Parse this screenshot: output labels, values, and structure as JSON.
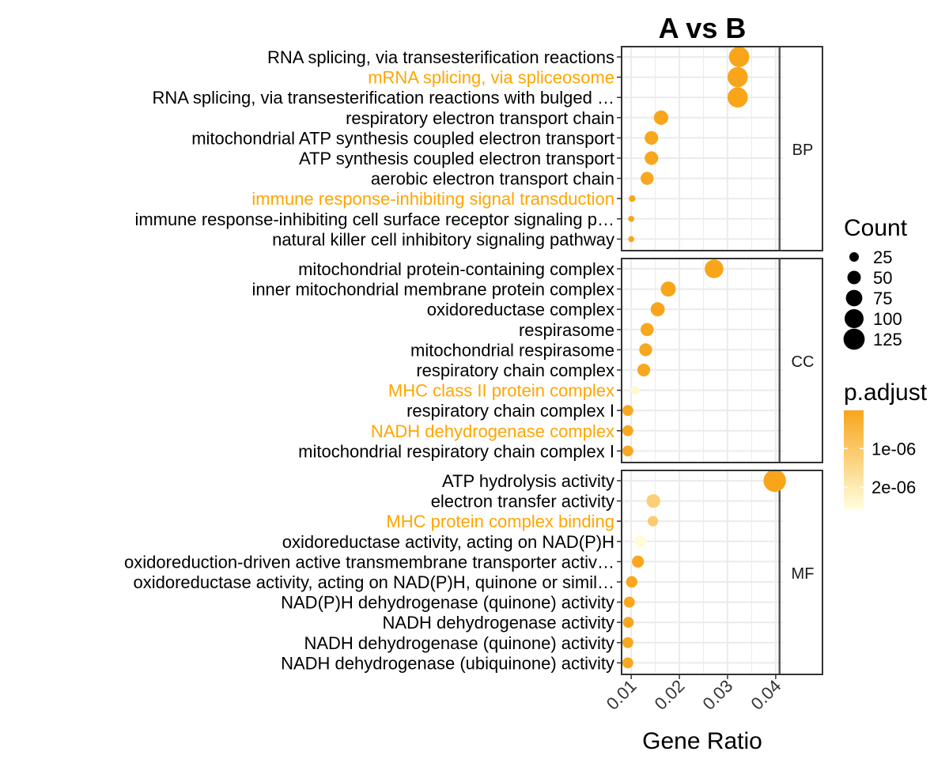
{
  "chart_data": {
    "type": "scatter",
    "title": "A vs B",
    "xlabel": "Gene Ratio",
    "ylabel": "",
    "xlim": [
      0.008,
      0.0415
    ],
    "xticks": [
      0.01,
      0.02,
      0.03,
      0.04
    ],
    "xtick_labels": [
      "0.01",
      "0.02",
      "0.03",
      "0.04"
    ],
    "vline_x": 0.0408,
    "grid": true,
    "highlight_color": "#FFA500",
    "default_label_color": "#000000",
    "color_scale": {
      "low_color": "#F8A51A",
      "high_color": "#FFFFE0",
      "min": 0,
      "max": 2.6e-06
    },
    "facets": [
      {
        "name": "BP",
        "terms": [
          {
            "label": "RNA splicing, via transesterification reactions",
            "gene_ratio": 0.0324,
            "count": 115,
            "p_adjust": 1e-10,
            "highlighted": false
          },
          {
            "label": "mRNA splicing, via spliceosome",
            "gene_ratio": 0.0321,
            "count": 114,
            "p_adjust": 1e-10,
            "highlighted": true
          },
          {
            "label": "RNA splicing, via transesterification reactions with bulged …",
            "gene_ratio": 0.0321,
            "count": 114,
            "p_adjust": 1e-10,
            "highlighted": false
          },
          {
            "label": "respiratory electron transport chain",
            "gene_ratio": 0.0162,
            "count": 58,
            "p_adjust": 2e-08,
            "highlighted": false
          },
          {
            "label": "mitochondrial ATP synthesis coupled electron transport",
            "gene_ratio": 0.0142,
            "count": 51,
            "p_adjust": 3e-08,
            "highlighted": false
          },
          {
            "label": "ATP synthesis coupled electron transport",
            "gene_ratio": 0.0142,
            "count": 51,
            "p_adjust": 3e-08,
            "highlighted": false
          },
          {
            "label": "aerobic electron transport chain",
            "gene_ratio": 0.0133,
            "count": 47,
            "p_adjust": 5e-08,
            "highlighted": false
          },
          {
            "label": "immune response-inhibiting signal transduction",
            "gene_ratio": 0.0102,
            "count": 12,
            "p_adjust": 1e-08,
            "highlighted": true
          },
          {
            "label": "immune response-inhibiting cell surface receptor signaling p…",
            "gene_ratio": 0.01,
            "count": 10,
            "p_adjust": 1e-08,
            "highlighted": false
          },
          {
            "label": "natural killer cell inhibitory signaling pathway",
            "gene_ratio": 0.01,
            "count": 10,
            "p_adjust": 1e-08,
            "highlighted": false
          }
        ]
      },
      {
        "name": "CC",
        "terms": [
          {
            "label": "mitochondrial protein-containing complex",
            "gene_ratio": 0.0272,
            "count": 97,
            "p_adjust": 1e-10,
            "highlighted": false
          },
          {
            "label": "inner mitochondrial membrane protein complex",
            "gene_ratio": 0.0177,
            "count": 63,
            "p_adjust": 1e-09,
            "highlighted": false
          },
          {
            "label": "oxidoreductase complex",
            "gene_ratio": 0.0155,
            "count": 55,
            "p_adjust": 1e-08,
            "highlighted": false
          },
          {
            "label": "respirasome",
            "gene_ratio": 0.0133,
            "count": 48,
            "p_adjust": 5e-08,
            "highlighted": false
          },
          {
            "label": "mitochondrial respirasome",
            "gene_ratio": 0.013,
            "count": 46,
            "p_adjust": 5e-08,
            "highlighted": false
          },
          {
            "label": "respiratory chain complex",
            "gene_ratio": 0.0126,
            "count": 45,
            "p_adjust": 5e-08,
            "highlighted": false
          },
          {
            "label": "MHC class II protein complex",
            "gene_ratio": 0.0108,
            "count": 20,
            "p_adjust": 2.4e-06,
            "highlighted": true
          },
          {
            "label": "respiratory chain complex I",
            "gene_ratio": 0.0093,
            "count": 33,
            "p_adjust": 1e-07,
            "highlighted": false
          },
          {
            "label": "NADH dehydrogenase complex",
            "gene_ratio": 0.0093,
            "count": 33,
            "p_adjust": 1e-07,
            "highlighted": true
          },
          {
            "label": "mitochondrial respiratory chain complex I",
            "gene_ratio": 0.0093,
            "count": 33,
            "p_adjust": 1e-07,
            "highlighted": false
          }
        ]
      },
      {
        "name": "MF",
        "terms": [
          {
            "label": "ATP hydrolysis activity",
            "gene_ratio": 0.0398,
            "count": 140,
            "p_adjust": 1e-10,
            "highlighted": false
          },
          {
            "label": "electron transfer activity",
            "gene_ratio": 0.0146,
            "count": 52,
            "p_adjust": 1.2e-06,
            "highlighted": false
          },
          {
            "label": "MHC protein complex binding",
            "gene_ratio": 0.0145,
            "count": 30,
            "p_adjust": 1.1e-06,
            "highlighted": true
          },
          {
            "label": "oxidoreductase activity, acting on NAD(P)H",
            "gene_ratio": 0.0119,
            "count": 42,
            "p_adjust": 2.5e-06,
            "highlighted": false
          },
          {
            "label": "oxidoreduction-driven active transmembrane transporter activ…",
            "gene_ratio": 0.0114,
            "count": 40,
            "p_adjust": 5e-08,
            "highlighted": false
          },
          {
            "label": "oxidoreductase activity, acting on NAD(P)H, quinone or simil…",
            "gene_ratio": 0.0101,
            "count": 36,
            "p_adjust": 5e-08,
            "highlighted": false
          },
          {
            "label": "NAD(P)H dehydrogenase (quinone) activity",
            "gene_ratio": 0.0096,
            "count": 34,
            "p_adjust": 5e-08,
            "highlighted": false
          },
          {
            "label": "NADH dehydrogenase activity",
            "gene_ratio": 0.0094,
            "count": 33,
            "p_adjust": 5e-08,
            "highlighted": false
          },
          {
            "label": "NADH dehydrogenase (quinone) activity",
            "gene_ratio": 0.0093,
            "count": 33,
            "p_adjust": 5e-08,
            "highlighted": false
          },
          {
            "label": "NADH dehydrogenase (ubiquinone) activity",
            "gene_ratio": 0.0093,
            "count": 33,
            "p_adjust": 5e-08,
            "highlighted": false
          }
        ]
      }
    ],
    "legend_size": {
      "title": "Count",
      "values": [
        25,
        50,
        75,
        100,
        125
      ],
      "labels": [
        "25",
        "50",
        "75",
        "100",
        "125"
      ],
      "color": "#000000"
    },
    "legend_color": {
      "title": "p.adjust",
      "tick_values": [
        1e-06,
        2e-06
      ],
      "tick_labels": [
        "1e-06",
        "2e-06"
      ]
    }
  }
}
